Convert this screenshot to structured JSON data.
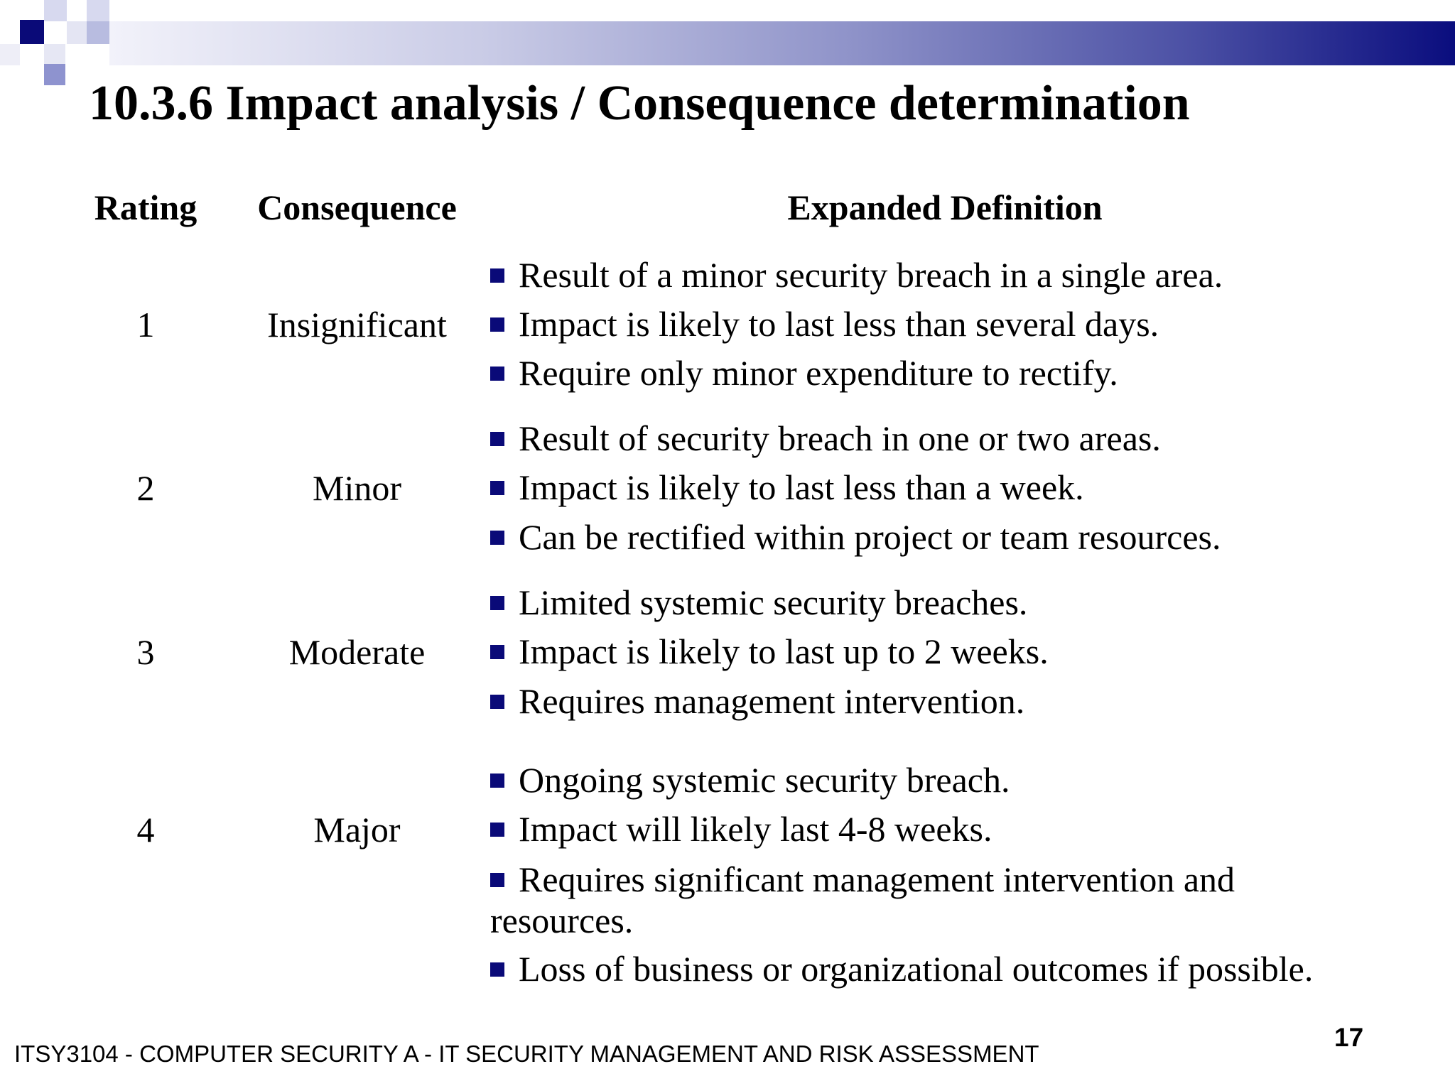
{
  "slide": {
    "title": "10.3.6 Impact analysis / Consequence determination",
    "footer": "ITSY3104 - COMPUTER SECURITY A - IT SECURITY MANAGEMENT AND RISK ASSESSMENT",
    "page_number": "17",
    "accent_color": "#0a0a78"
  },
  "table": {
    "headers": [
      "Rating",
      "Consequence",
      "Expanded Definition"
    ],
    "rows": [
      {
        "rating": "1",
        "consequence": "Insignificant",
        "definitions": [
          "Result of a minor security breach in a single area.",
          "Impact is likely to last less than several days.",
          "Require only minor expenditure to rectify."
        ]
      },
      {
        "rating": "2",
        "consequence": "Minor",
        "definitions": [
          "Result of security breach in one or two areas.",
          "Impact is likely to last less than a week.",
          "Can be rectified within project or team resources."
        ]
      },
      {
        "rating": "3",
        "consequence": "Moderate",
        "definitions": [
          "Limited systemic security breaches.",
          "Impact is likely to last up to 2 weeks.",
          "Requires management intervention."
        ]
      },
      {
        "rating": "4",
        "consequence": "Major",
        "definitions": [
          "Ongoing systemic security breach.",
          "Impact will likely last 4-8 weeks.",
          "Requires significant management intervention and resources.",
          "Loss of business or organizational outcomes if possible."
        ]
      }
    ]
  }
}
